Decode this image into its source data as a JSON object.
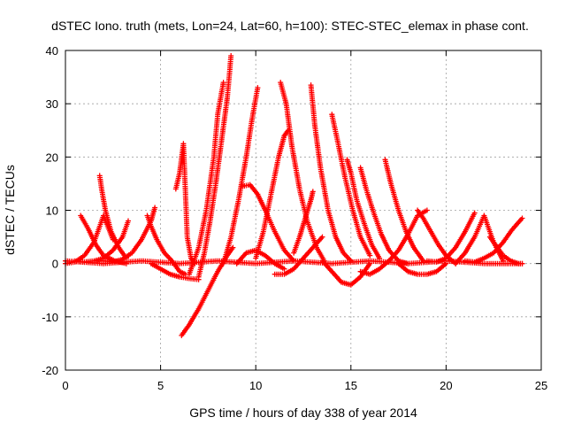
{
  "chart_data": {
    "type": "scatter",
    "title": "dSTEC Iono. truth (mets, Lon=24, Lat=60, h=100): STEC-STEC_elemax in phase cont.",
    "xlabel": "GPS time / hours of day 338 of year 2014",
    "ylabel": "dSTEC  / TECUs",
    "xlim": [
      0,
      25
    ],
    "ylim": [
      -20,
      40
    ],
    "x_ticks": [
      0,
      5,
      10,
      15,
      20,
      25
    ],
    "y_ticks": [
      -20,
      -10,
      0,
      10,
      20,
      30,
      40
    ],
    "x_tick_labels": [
      "0",
      "5",
      "10",
      "15",
      "20",
      "25"
    ],
    "y_tick_labels": [
      "-20",
      "-10",
      "0",
      "10",
      "20",
      "30",
      "40"
    ],
    "grid": true,
    "marker": "plus",
    "color": "#ff0000",
    "series": [
      {
        "x": [
          0.0,
          0.5,
          1.0,
          1.5,
          2.0,
          2.5
        ],
        "y": [
          0.0,
          0.3,
          1.5,
          4.0,
          9.0,
          4.5
        ]
      },
      {
        "x": [
          1.8,
          1.9,
          2.1,
          2.4,
          2.8,
          3.2
        ],
        "y": [
          16.5,
          14.0,
          10.0,
          6.0,
          3.0,
          1.0
        ]
      },
      {
        "x": [
          0.8,
          1.2,
          1.6,
          2.0,
          2.6,
          3.2
        ],
        "y": [
          9.0,
          6.5,
          3.5,
          1.5,
          0.5,
          0.0
        ]
      },
      {
        "x": [
          0.5,
          1.0,
          1.5,
          2.0,
          2.5,
          3.0,
          3.3
        ],
        "y": [
          0.5,
          0.3,
          0.5,
          1.0,
          2.5,
          5.0,
          8.0
        ]
      },
      {
        "x": [
          2.0,
          2.5,
          3.0,
          3.5,
          4.0,
          4.5,
          4.7
        ],
        "y": [
          0.5,
          0.3,
          0.8,
          2.0,
          4.5,
          8.0,
          10.5
        ]
      },
      {
        "x": [
          4.3,
          4.5,
          4.8,
          5.2,
          5.6,
          6.0,
          6.3
        ],
        "y": [
          9.0,
          7.0,
          4.5,
          2.0,
          0.5,
          -1.5,
          -2.0
        ]
      },
      {
        "x": [
          5.8,
          6.0,
          6.2,
          6.4,
          6.6,
          6.8
        ],
        "y": [
          14.0,
          17.0,
          22.5,
          5.0,
          1.0,
          0.0
        ]
      },
      {
        "x": [
          4.5,
          5.0,
          5.5,
          6.0,
          6.5,
          7.0
        ],
        "y": [
          0.0,
          -1.0,
          -2.0,
          -2.5,
          -2.8,
          -3.0
        ]
      },
      {
        "x": [
          6.1,
          6.5,
          7.0,
          7.5,
          8.0,
          8.5,
          8.8
        ],
        "y": [
          -13.5,
          -11.5,
          -8.5,
          -5.0,
          -1.5,
          1.5,
          3.0
        ]
      },
      {
        "x": [
          7.0,
          7.3,
          7.6,
          7.9,
          8.2,
          8.5,
          8.7
        ],
        "y": [
          -2.5,
          2.0,
          8.0,
          15.0,
          23.0,
          31.0,
          39.0
        ]
      },
      {
        "x": [
          6.5,
          7.0,
          7.4,
          7.8,
          8.0,
          8.3
        ],
        "y": [
          -2.0,
          3.0,
          10.0,
          20.0,
          28.0,
          34.0
        ]
      },
      {
        "x": [
          8.3,
          8.7,
          9.1,
          9.5,
          9.8,
          10.1
        ],
        "y": [
          0.0,
          5.0,
          12.0,
          20.0,
          27.0,
          33.0
        ]
      },
      {
        "x": [
          9.0,
          9.5,
          10.0,
          10.5,
          11.0,
          11.5
        ],
        "y": [
          0.0,
          2.0,
          2.5,
          1.5,
          0.0,
          -1.0
        ]
      },
      {
        "x": [
          9.3,
          9.7,
          10.1,
          10.5,
          11.0,
          11.5,
          12.0
        ],
        "y": [
          14.5,
          14.8,
          13.0,
          10.0,
          6.0,
          2.5,
          0.5
        ]
      },
      {
        "x": [
          10.0,
          10.4,
          10.8,
          11.2,
          11.5,
          11.7
        ],
        "y": [
          1.0,
          6.0,
          13.0,
          20.0,
          24.0,
          25.0
        ]
      },
      {
        "x": [
          11.3,
          11.6,
          11.9,
          12.3,
          12.7,
          13.2,
          13.6
        ],
        "y": [
          34.0,
          30.0,
          22.0,
          14.0,
          8.0,
          3.0,
          0.5
        ]
      },
      {
        "x": [
          12.9,
          13.1,
          13.4,
          13.8,
          14.2,
          14.6,
          15.0
        ],
        "y": [
          33.5,
          26.0,
          18.0,
          10.0,
          5.0,
          2.0,
          0.5
        ]
      },
      {
        "x": [
          11.0,
          11.5,
          12.0,
          12.5,
          13.0,
          13.5
        ],
        "y": [
          -2.0,
          -2.0,
          -1.0,
          1.0,
          3.0,
          5.0
        ]
      },
      {
        "x": [
          12.0,
          12.3,
          12.6,
          12.9,
          13.0
        ],
        "y": [
          2.0,
          5.0,
          8.5,
          12.0,
          13.5
        ]
      },
      {
        "x": [
          14.0,
          14.3,
          14.7,
          15.1,
          15.5,
          16.0
        ],
        "y": [
          28.0,
          23.0,
          16.0,
          10.0,
          5.0,
          1.5
        ]
      },
      {
        "x": [
          14.8,
          15.0,
          15.3,
          15.7,
          16.1,
          16.5
        ],
        "y": [
          19.5,
          17.0,
          12.0,
          7.5,
          3.5,
          1.0
        ]
      },
      {
        "x": [
          13.5,
          14.0,
          14.5,
          15.0,
          15.5,
          16.0
        ],
        "y": [
          0.5,
          -1.5,
          -3.5,
          -4.0,
          -2.5,
          0.0
        ]
      },
      {
        "x": [
          15.5,
          15.8,
          16.2,
          16.6,
          17.0,
          17.5,
          18.0
        ],
        "y": [
          18.0,
          14.0,
          9.5,
          5.5,
          2.5,
          0.5,
          0.0
        ]
      },
      {
        "x": [
          16.8,
          17.1,
          17.5,
          17.9,
          18.3,
          18.8
        ],
        "y": [
          19.5,
          15.0,
          10.0,
          6.0,
          3.0,
          0.5
        ]
      },
      {
        "x": [
          15.5,
          16.0,
          16.5,
          17.0,
          17.5,
          18.0,
          18.5,
          19.0
        ],
        "y": [
          -1.5,
          -2.0,
          -1.0,
          0.5,
          2.5,
          5.5,
          9.0,
          10.0
        ]
      },
      {
        "x": [
          18.5,
          18.8,
          19.2,
          19.6,
          20.0,
          20.5
        ],
        "y": [
          10.0,
          8.5,
          6.0,
          3.5,
          1.5,
          0.0
        ]
      },
      {
        "x": [
          17.5,
          18.0,
          18.5,
          19.0,
          19.5,
          20.0
        ],
        "y": [
          0.0,
          -1.5,
          -2.0,
          -2.0,
          -1.5,
          0.0
        ]
      },
      {
        "x": [
          19.0,
          19.5,
          20.0,
          20.5,
          21.0,
          21.5
        ],
        "y": [
          0.5,
          0.3,
          1.0,
          3.0,
          6.0,
          9.5
        ]
      },
      {
        "x": [
          20.5,
          21.0,
          21.5,
          22.0,
          22.5,
          23.0
        ],
        "y": [
          0.0,
          2.0,
          5.0,
          9.0,
          4.0,
          0.5
        ]
      },
      {
        "x": [
          21.0,
          21.5,
          22.0,
          22.5,
          23.0,
          23.5,
          24.0
        ],
        "y": [
          0.5,
          0.3,
          1.0,
          2.0,
          4.0,
          6.5,
          8.5
        ]
      },
      {
        "x": [
          22.3,
          22.6,
          23.0,
          23.4,
          23.8,
          24.0
        ],
        "y": [
          5.0,
          3.5,
          1.5,
          0.5,
          0.0,
          0.0
        ]
      },
      {
        "x": [
          0.0,
          2.0,
          4.0,
          6.0,
          8.0,
          10.0,
          12.0,
          14.0,
          16.0,
          18.0,
          20.0,
          22.0,
          24.0
        ],
        "y": [
          0.5,
          0.0,
          0.5,
          0.0,
          0.5,
          0.0,
          0.5,
          0.0,
          0.5,
          0.0,
          0.5,
          0.0,
          0.0
        ]
      }
    ]
  }
}
